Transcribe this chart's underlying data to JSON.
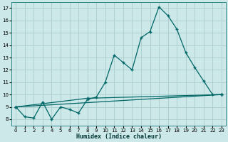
{
  "xlabel": "Humidex (Indice chaleur)",
  "background_color": "#cce8e8",
  "grid_color": "#aacccc",
  "line_color": "#006666",
  "xlim": [
    -0.5,
    23.5
  ],
  "ylim": [
    7.5,
    17.5
  ],
  "yticks": [
    8,
    9,
    10,
    11,
    12,
    13,
    14,
    15,
    16,
    17
  ],
  "xticks": [
    0,
    1,
    2,
    3,
    4,
    5,
    6,
    7,
    8,
    9,
    10,
    11,
    12,
    13,
    14,
    15,
    16,
    17,
    18,
    19,
    20,
    21,
    22,
    23
  ],
  "line1_x": [
    0,
    1,
    2,
    3,
    4,
    5,
    6,
    7,
    8,
    9,
    10,
    11,
    12,
    13,
    14,
    15,
    16,
    17,
    18,
    19,
    20,
    21,
    22,
    23
  ],
  "line1_y": [
    9.0,
    8.2,
    8.1,
    9.4,
    8.0,
    9.0,
    8.8,
    8.5,
    9.6,
    9.8,
    11.0,
    13.2,
    12.6,
    12.0,
    14.6,
    15.1,
    17.1,
    16.4,
    15.3,
    13.4,
    12.2,
    11.1,
    10.0,
    10.0
  ],
  "line3_x": [
    0,
    23
  ],
  "line3_y": [
    9.0,
    10.0
  ],
  "line4_x": [
    0,
    8,
    23
  ],
  "line4_y": [
    9.0,
    9.7,
    10.0
  ]
}
